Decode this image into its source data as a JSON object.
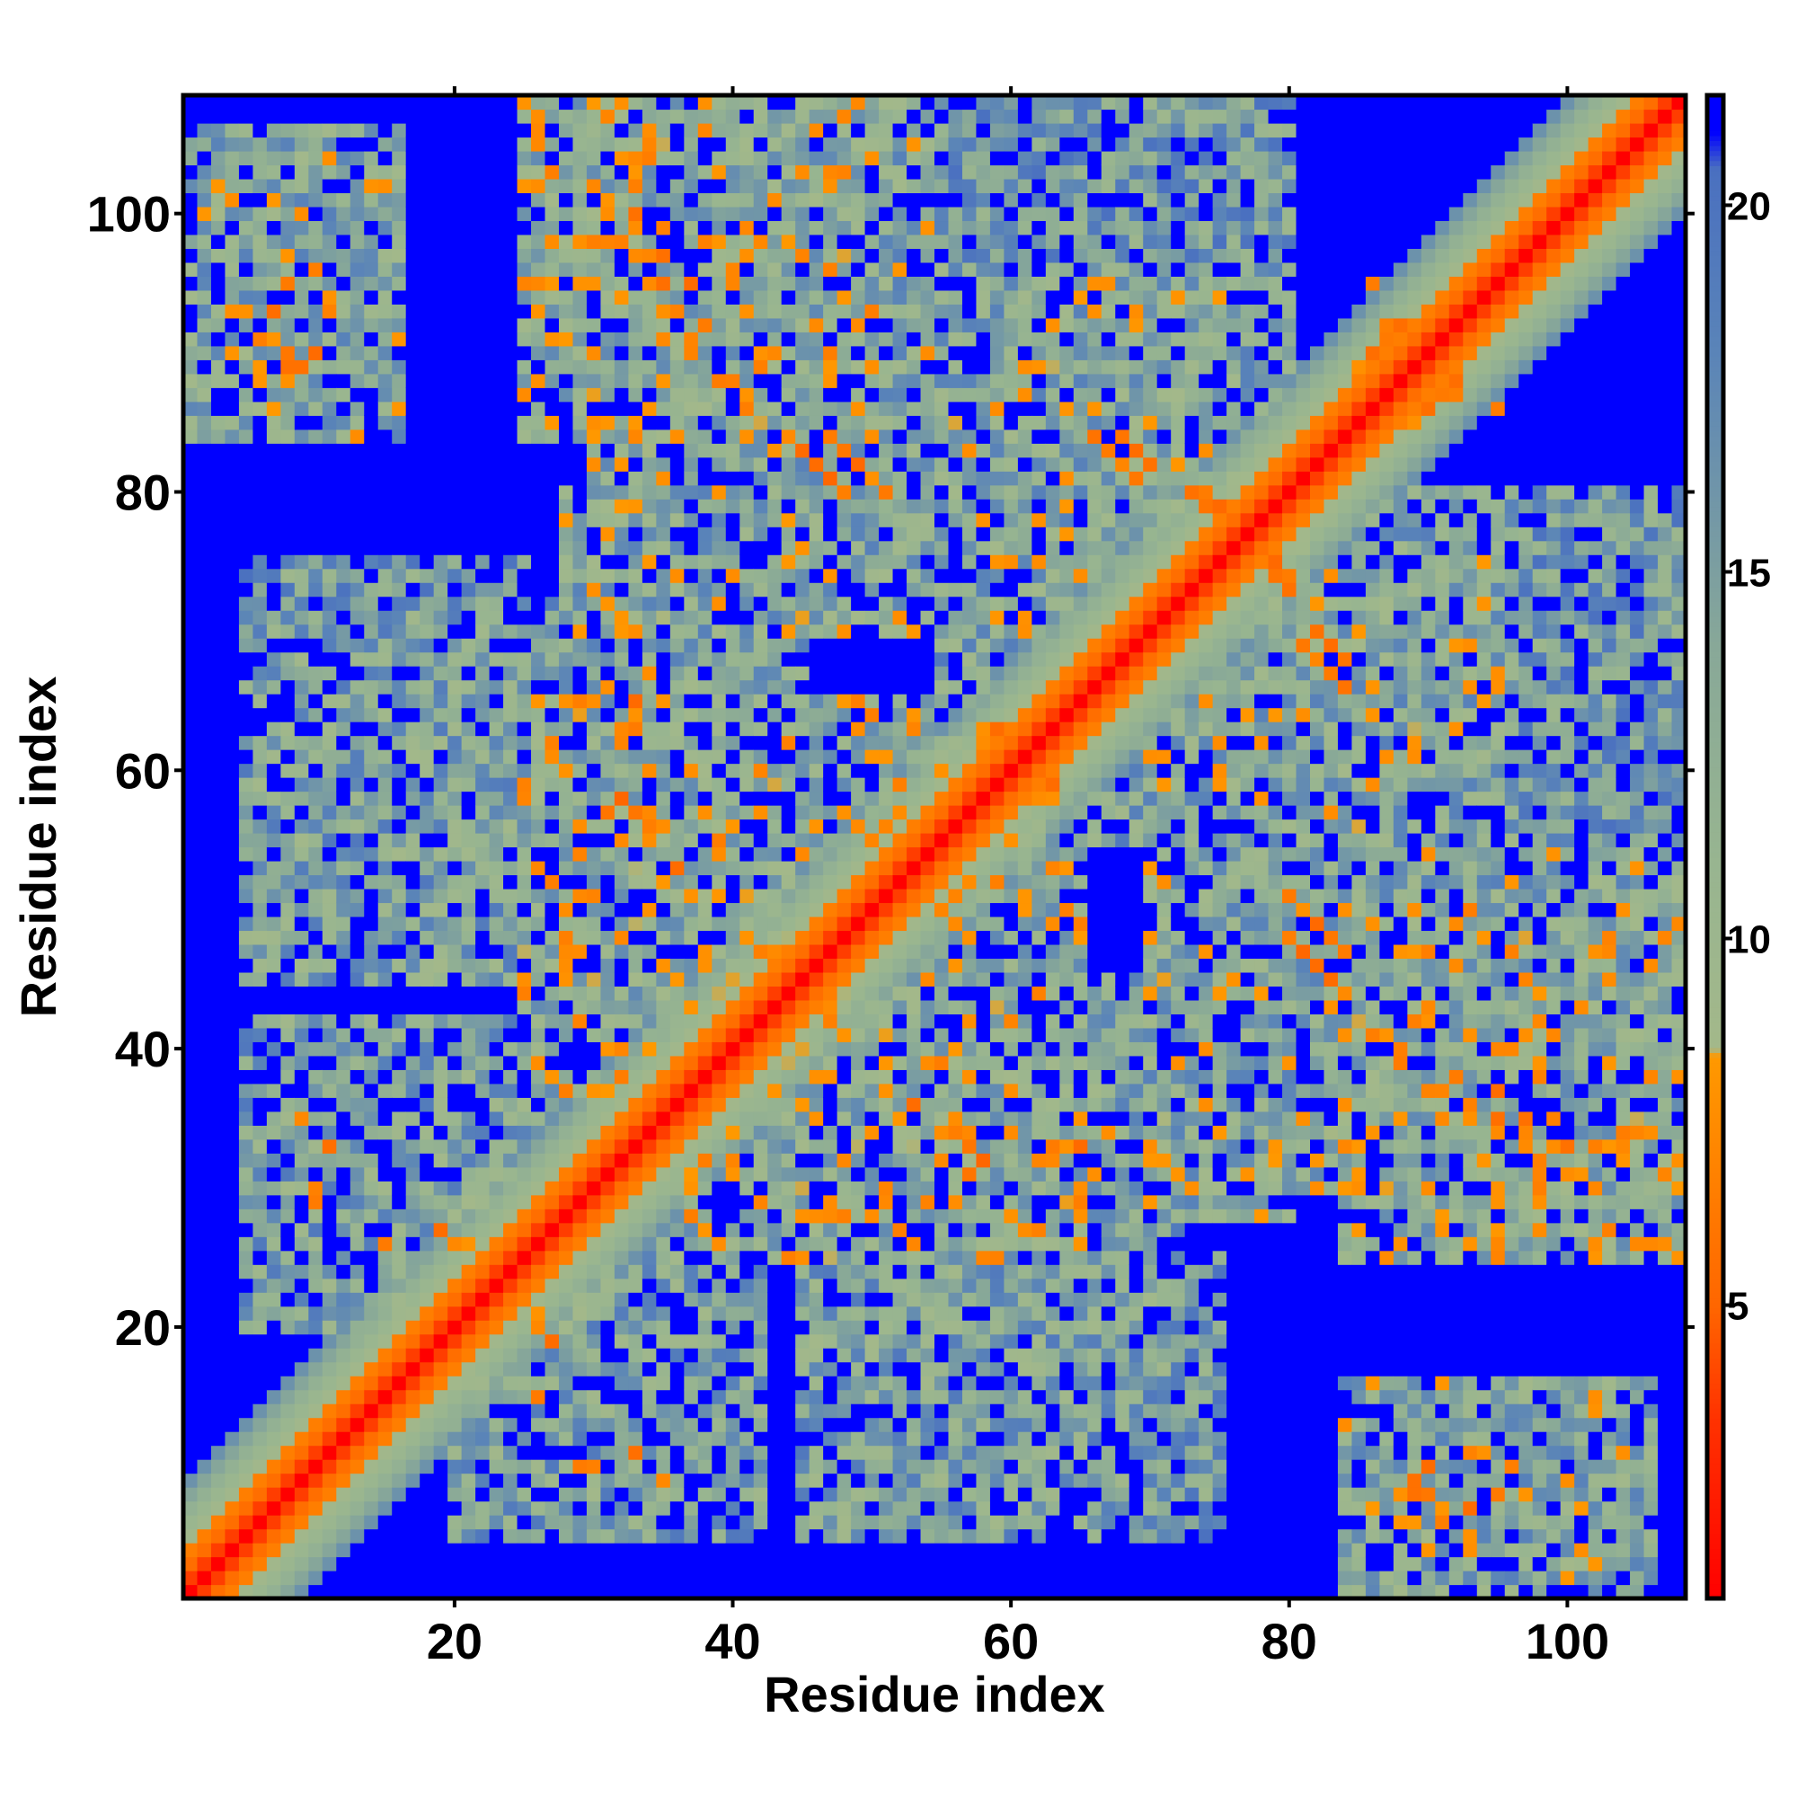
{
  "chart_data": {
    "type": "heatmap",
    "title": "",
    "xlabel": "Residue index",
    "ylabel": "Residue index",
    "n_residues": 108,
    "xlim": [
      0.5,
      108.5
    ],
    "ylim": [
      0.5,
      108.5
    ],
    "x_ticks": [
      20,
      40,
      60,
      80,
      100
    ],
    "y_ticks": [
      20,
      40,
      60,
      80,
      100
    ],
    "colorbar": {
      "range": [
        1,
        21.5
      ],
      "ticks": [
        5,
        10,
        15,
        20
      ],
      "stops": [
        {
          "value": 1,
          "color": "#ff0000"
        },
        {
          "value": 3.5,
          "color": "#ff3300"
        },
        {
          "value": 5,
          "color": "#ff6600"
        },
        {
          "value": 8.4,
          "color": "#ff9900"
        },
        {
          "value": 8.5,
          "color": "#a3b88a"
        },
        {
          "value": 11,
          "color": "#98b590"
        },
        {
          "value": 14,
          "color": "#88a898"
        },
        {
          "value": 18,
          "color": "#5a84b8"
        },
        {
          "value": 20.5,
          "color": "#4a70c0"
        },
        {
          "value": 21,
          "color": "#0000ff"
        }
      ]
    },
    "cap_value": 21,
    "cap_color": "#0000ff",
    "diagonal": {
      "color": "#ff0000"
    },
    "near_diagonal": {
      "d1_distance": 3.8,
      "d2_distance": 5.5,
      "d3_distance": 6.6,
      "d4_distance": 9.0,
      "d5_distance": 12.0
    },
    "contact_regions": [
      {
        "x": [
          1,
          16
        ],
        "y": [
          84,
          106
        ],
        "mean": 13
      },
      {
        "x": [
          84,
          106
        ],
        "y": [
          1,
          16
        ],
        "mean": 13
      },
      {
        "x": [
          25,
          50
        ],
        "y": [
          84,
          108
        ],
        "mean": 12
      },
      {
        "x": [
          84,
          108
        ],
        "y": [
          25,
          50
        ],
        "mean": 12
      },
      {
        "x": [
          45,
          75
        ],
        "y": [
          70,
          95
        ],
        "mean": 13
      },
      {
        "x": [
          70,
          95
        ],
        "y": [
          45,
          75
        ],
        "mean": 13
      },
      {
        "x": [
          5,
          45
        ],
        "y": [
          45,
          72
        ],
        "mean": 14
      },
      {
        "x": [
          45,
          72
        ],
        "y": [
          5,
          45
        ],
        "mean": 14
      },
      {
        "x": [
          5,
          25
        ],
        "y": [
          20,
          42
        ],
        "mean": 14
      },
      {
        "x": [
          20,
          42
        ],
        "y": [
          5,
          25
        ],
        "mean": 14
      },
      {
        "x": [
          25,
          55
        ],
        "y": [
          35,
          65
        ],
        "mean": 12
      },
      {
        "x": [
          35,
          65
        ],
        "y": [
          25,
          55
        ],
        "mean": 12
      },
      {
        "x": [
          55,
          80
        ],
        "y": [
          28,
          45
        ],
        "mean": 13
      },
      {
        "x": [
          28,
          45
        ],
        "y": [
          55,
          80
        ],
        "mean": 13
      },
      {
        "x": [
          80,
          108
        ],
        "y": [
          30,
          55
        ],
        "mean": 13
      },
      {
        "x": [
          30,
          55
        ],
        "y": [
          80,
          108
        ],
        "mean": 13
      },
      {
        "x": [
          60,
          90
        ],
        "y": [
          55,
          80
        ],
        "mean": 14
      },
      {
        "x": [
          55,
          80
        ],
        "y": [
          60,
          90
        ],
        "mean": 14
      },
      {
        "x": [
          85,
          108
        ],
        "y": [
          55,
          80
        ],
        "mean": 15
      },
      {
        "x": [
          55,
          80
        ],
        "y": [
          85,
          108
        ],
        "mean": 15
      },
      {
        "x": [
          45,
          75
        ],
        "y": [
          5,
          25
        ],
        "mean": 15
      },
      {
        "x": [
          5,
          25
        ],
        "y": [
          45,
          75
        ],
        "mean": 15
      }
    ],
    "close_contacts": [
      [
        7,
        93
      ],
      [
        9,
        89
      ],
      [
        11,
        93
      ],
      [
        5,
        93
      ],
      [
        8,
        90
      ],
      [
        30,
        98
      ],
      [
        33,
        97
      ],
      [
        35,
        95
      ],
      [
        37,
        95
      ],
      [
        38,
        92
      ],
      [
        41,
        93
      ],
      [
        33,
        100
      ],
      [
        47,
        84
      ],
      [
        48,
        83
      ],
      [
        49,
        82
      ],
      [
        50,
        81
      ],
      [
        51,
        80
      ],
      [
        66,
        84
      ],
      [
        67,
        83
      ],
      [
        68,
        82
      ],
      [
        69,
        81
      ],
      [
        74,
        80
      ],
      [
        75,
        79
      ],
      [
        31,
        57
      ],
      [
        32,
        58
      ],
      [
        34,
        55
      ],
      [
        36,
        53
      ],
      [
        39,
        55
      ],
      [
        29,
        65
      ],
      [
        33,
        65
      ],
      [
        52,
        57
      ],
      [
        53,
        56
      ],
      [
        56,
        51
      ],
      [
        58,
        63
      ],
      [
        62,
        58
      ],
      [
        63,
        59
      ],
      [
        80,
        48
      ],
      [
        81,
        47
      ],
      [
        82,
        46
      ],
      [
        83,
        45
      ],
      [
        84,
        44
      ],
      [
        77,
        76
      ],
      [
        78,
        75
      ],
      [
        79,
        74
      ],
      [
        80,
        73
      ],
      [
        82,
        70
      ],
      [
        83,
        69
      ],
      [
        84,
        68
      ],
      [
        88,
        39
      ],
      [
        90,
        37
      ],
      [
        92,
        38
      ],
      [
        93,
        36
      ],
      [
        95,
        34
      ],
      [
        97,
        35
      ],
      [
        98,
        32
      ],
      [
        100,
        31
      ],
      [
        89,
        8
      ],
      [
        90,
        10
      ],
      [
        91,
        6
      ],
      [
        93,
        4
      ],
      [
        95,
        8
      ],
      [
        96,
        10
      ],
      [
        10,
        29
      ],
      [
        11,
        33
      ],
      [
        15,
        26
      ],
      [
        20,
        26
      ],
      [
        25,
        23
      ],
      [
        26,
        21
      ],
      [
        27,
        19
      ],
      [
        55,
        34
      ],
      [
        56,
        35
      ],
      [
        57,
        33
      ],
      [
        63,
        33
      ],
      [
        65,
        29
      ],
      [
        64,
        33
      ],
      [
        30,
        10
      ],
      [
        33,
        11
      ],
      [
        35,
        9
      ],
      [
        85,
        89
      ],
      [
        86,
        90
      ],
      [
        87,
        91
      ],
      [
        88,
        92
      ],
      [
        89,
        88
      ],
      [
        92,
        87
      ],
      [
        95,
        86
      ]
    ]
  }
}
